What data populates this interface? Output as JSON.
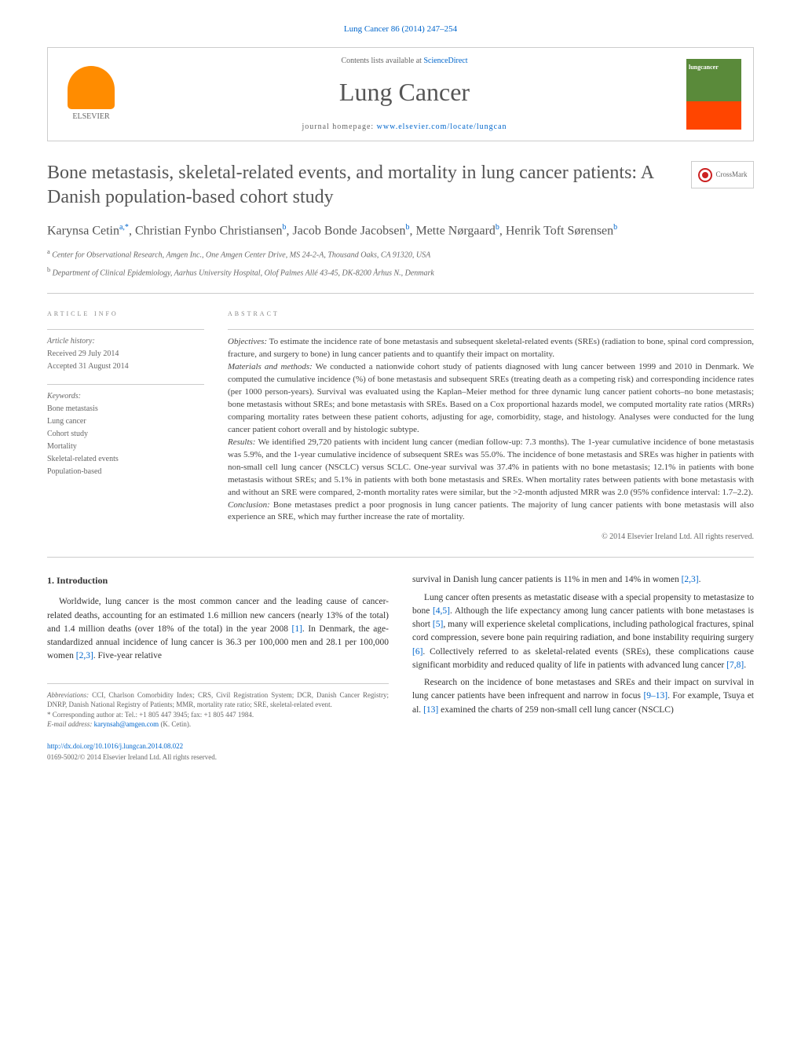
{
  "journal": {
    "header_link": "Lung Cancer 86 (2014) 247–254",
    "contents_prefix": "Contents lists available at ",
    "contents_link": "ScienceDirect",
    "name": "Lung Cancer",
    "homepage_prefix": "journal homepage: ",
    "homepage_url": "www.elsevier.com/locate/lungcan",
    "elsevier_label": "ELSEVIER",
    "cover_label": "lungcancer"
  },
  "crossmark_label": "CrossMark",
  "article": {
    "title": "Bone metastasis, skeletal-related events, and mortality in lung cancer patients: A Danish population-based cohort study",
    "authors_html": "Karynsa Cetin<sup>a,*</sup>, Christian Fynbo Christiansen<sup>b</sup>, Jacob Bonde Jacobsen<sup>b</sup>, Mette Nørgaard<sup>b</sup>, Henrik Toft Sørensen<sup>b</sup>",
    "affiliations": [
      "a Center for Observational Research, Amgen Inc., One Amgen Center Drive, MS 24-2-A, Thousand Oaks, CA 91320, USA",
      "b Department of Clinical Epidemiology, Aarhus University Hospital, Olof Palmes Allé 43-45, DK-8200 Århus N., Denmark"
    ]
  },
  "info": {
    "heading": "ARTICLE INFO",
    "history_label": "Article history:",
    "received": "Received 29 July 2014",
    "accepted": "Accepted 31 August 2014",
    "keywords_label": "Keywords:",
    "keywords": [
      "Bone metastasis",
      "Lung cancer",
      "Cohort study",
      "Mortality",
      "Skeletal-related events",
      "Population-based"
    ]
  },
  "abstract": {
    "heading": "ABSTRACT",
    "objectives_label": "Objectives:",
    "objectives": " To estimate the incidence rate of bone metastasis and subsequent skeletal-related events (SREs) (radiation to bone, spinal cord compression, fracture, and surgery to bone) in lung cancer patients and to quantify their impact on mortality.",
    "methods_label": "Materials and methods:",
    "methods": " We conducted a nationwide cohort study of patients diagnosed with lung cancer between 1999 and 2010 in Denmark. We computed the cumulative incidence (%) of bone metastasis and subsequent SREs (treating death as a competing risk) and corresponding incidence rates (per 1000 person-years). Survival was evaluated using the Kaplan–Meier method for three dynamic lung cancer patient cohorts–no bone metastasis; bone metastasis without SREs; and bone metastasis with SREs. Based on a Cox proportional hazards model, we computed mortality rate ratios (MRRs) comparing mortality rates between these patient cohorts, adjusting for age, comorbidity, stage, and histology. Analyses were conducted for the lung cancer patient cohort overall and by histologic subtype.",
    "results_label": "Results:",
    "results": " We identified 29,720 patients with incident lung cancer (median follow-up: 7.3 months). The 1-year cumulative incidence of bone metastasis was 5.9%, and the 1-year cumulative incidence of subsequent SREs was 55.0%. The incidence of bone metastasis and SREs was higher in patients with non-small cell lung cancer (NSCLC) versus SCLC. One-year survival was 37.4% in patients with no bone metastasis; 12.1% in patients with bone metastasis without SREs; and 5.1% in patients with both bone metastasis and SREs. When mortality rates between patients with bone metastasis with and without an SRE were compared, 2-month mortality rates were similar, but the >2-month adjusted MRR was 2.0 (95% confidence interval: 1.7–2.2).",
    "conclusion_label": "Conclusion:",
    "conclusion": " Bone metastases predict a poor prognosis in lung cancer patients. The majority of lung cancer patients with bone metastasis will also experience an SRE, which may further increase the rate of mortality.",
    "copyright": "© 2014 Elsevier Ireland Ltd. All rights reserved."
  },
  "body": {
    "section_heading": "1. Introduction",
    "col1_p1": "Worldwide, lung cancer is the most common cancer and the leading cause of cancer-related deaths, accounting for an estimated 1.6 million new cancers (nearly 13% of the total) and 1.4 million deaths (over 18% of the total) in the year 2008 [1]. In Denmark, the age-standardized annual incidence of lung cancer is 36.3 per 100,000 men and 28.1 per 100,000 women [2,3]. Five-year relative",
    "col2_p1": "survival in Danish lung cancer patients is 11% in men and 14% in women [2,3].",
    "col2_p2": "Lung cancer often presents as metastatic disease with a special propensity to metastasize to bone [4,5]. Although the life expectancy among lung cancer patients with bone metastases is short [5], many will experience skeletal complications, including pathological fractures, spinal cord compression, severe bone pain requiring radiation, and bone instability requiring surgery [6]. Collectively referred to as skeletal-related events (SREs), these complications cause significant morbidity and reduced quality of life in patients with advanced lung cancer [7,8].",
    "col2_p3": "Research on the incidence of bone metastases and SREs and their impact on survival in lung cancer patients have been infrequent and narrow in focus [9–13]. For example, Tsuya et al. [13] examined the charts of 259 non-small cell lung cancer (NSCLC)"
  },
  "footnotes": {
    "abbrev_label": "Abbreviations:",
    "abbrev": " CCI, Charlson Comorbidity Index; CRS, Civil Registration System; DCR, Danish Cancer Registry; DNRP, Danish National Registry of Patients; MMR, mortality rate ratio; SRE, skeletal-related event.",
    "corr_label": "* Corresponding author at: ",
    "corr": "Tel.: +1 805 447 3945; fax: +1 805 447 1984.",
    "email_label": "E-mail address: ",
    "email": "karynsah@amgen.com",
    "email_suffix": " (K. Cetin)."
  },
  "footer": {
    "doi": "http://dx.doi.org/10.1016/j.lungcan.2014.08.022",
    "issn_copyright": "0169-5002/© 2014 Elsevier Ireland Ltd. All rights reserved."
  },
  "colors": {
    "link": "#0066cc",
    "text": "#333333",
    "muted": "#666666",
    "border": "#cccccc",
    "elsevier_orange": "#ff8c00"
  }
}
